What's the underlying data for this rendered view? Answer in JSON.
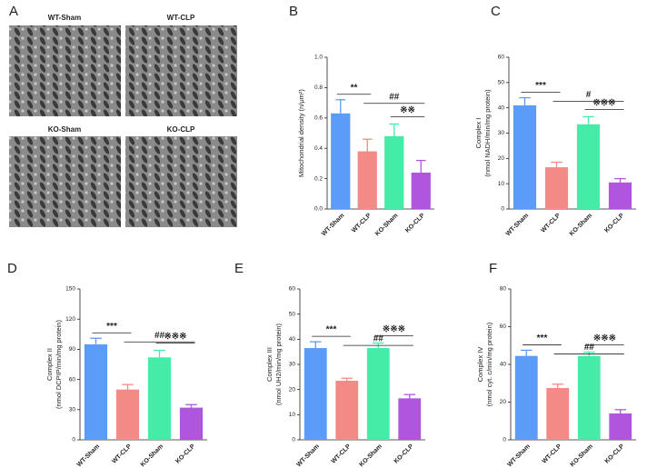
{
  "figure_a": {
    "panel": "A",
    "images": [
      "WT-Sham",
      "WT-CLP",
      "KO-Sham",
      "KO-CLP"
    ]
  },
  "chart_data": [
    {
      "type": "bar",
      "panel": "B",
      "ylabel": [
        "Mitochondrial density (n/μm²)"
      ],
      "categories": [
        "WT-Sham",
        "WT-CLP",
        "KO-Sham",
        "KO-CLP"
      ],
      "colors": [
        "#5a9cf8",
        "#f48a86",
        "#44eca8",
        "#b056de"
      ],
      "values": [
        0.63,
        0.38,
        0.48,
        0.24
      ],
      "errors": [
        0.09,
        0.08,
        0.08,
        0.08
      ],
      "ylim": [
        0,
        1.0
      ],
      "yticks": [
        {
          "value": 0,
          "label": "0.0"
        },
        0.2,
        0.4,
        0.6,
        0.8,
        {
          "value": 1.0,
          "label": "1.0"
        }
      ],
      "annotations": [
        "**",
        "##",
        "※※"
      ]
    },
    {
      "type": "bar",
      "panel": "C",
      "ylabel": [
        "Complex I",
        "(nmol NADH/min/mg protein)"
      ],
      "categories": [
        "WT-Sham",
        "WT-CLP",
        "KO-Sham",
        "KO-CLP"
      ],
      "colors": [
        "#5a9cf8",
        "#f48a86",
        "#44eca8",
        "#b056de"
      ],
      "values": [
        41,
        16.5,
        33.5,
        10.5
      ],
      "errors": [
        3,
        2,
        3,
        1.5
      ],
      "ylim": [
        0,
        60
      ],
      "yticks": [
        0,
        10,
        20,
        30,
        40,
        50,
        60
      ],
      "annotations": [
        "***",
        "#",
        "※※※"
      ]
    },
    {
      "type": "bar",
      "panel": "D",
      "ylabel": [
        "Complex II",
        "(nmol DCPIP/min/mg protein)"
      ],
      "categories": [
        "WT-Sham",
        "WT-CLP",
        "KO-Sham",
        "KO-CLP"
      ],
      "colors": [
        "#5a9cf8",
        "#f48a86",
        "#44eca8",
        "#b056de"
      ],
      "values": [
        95,
        50,
        82,
        32
      ],
      "errors": [
        6,
        5,
        7,
        3
      ],
      "ylim": [
        0,
        150
      ],
      "yticks": [
        0,
        30,
        60,
        90,
        120,
        150
      ],
      "annotations": [
        "***",
        "##",
        "※※※"
      ]
    },
    {
      "type": "bar",
      "panel": "E",
      "ylabel": [
        "Complex III",
        "(nmol UH2/min/mg protein)"
      ],
      "categories": [
        "WT-Sham",
        "WT-CLP",
        "KO-Sham",
        "KO-CLP"
      ],
      "colors": [
        "#5a9cf8",
        "#f48a86",
        "#44eca8",
        "#b056de"
      ],
      "values": [
        36.5,
        23.5,
        36.5,
        16.5
      ],
      "errors": [
        2.5,
        1,
        2,
        1.5
      ],
      "ylim": [
        0,
        60
      ],
      "yticks": [
        0,
        10,
        20,
        30,
        40,
        50,
        60
      ],
      "annotations": [
        "***",
        "##",
        "※※※"
      ]
    },
    {
      "type": "bar",
      "panel": "F",
      "ylabel": [
        "Complex IV",
        "(nmol cyt. c/min/mg protein)"
      ],
      "categories": [
        "WT-Sham",
        "WT-CLP",
        "KO-Sham",
        "KO-CLP"
      ],
      "colors": [
        "#5a9cf8",
        "#f48a86",
        "#44eca8",
        "#b056de"
      ],
      "values": [
        44.5,
        27.5,
        44.5,
        14
      ],
      "errors": [
        3,
        2,
        2,
        2
      ],
      "ylim": [
        0,
        80
      ],
      "yticks": [
        0,
        20,
        40,
        60,
        80
      ],
      "annotations": [
        "***",
        "##",
        "※※※"
      ]
    }
  ]
}
